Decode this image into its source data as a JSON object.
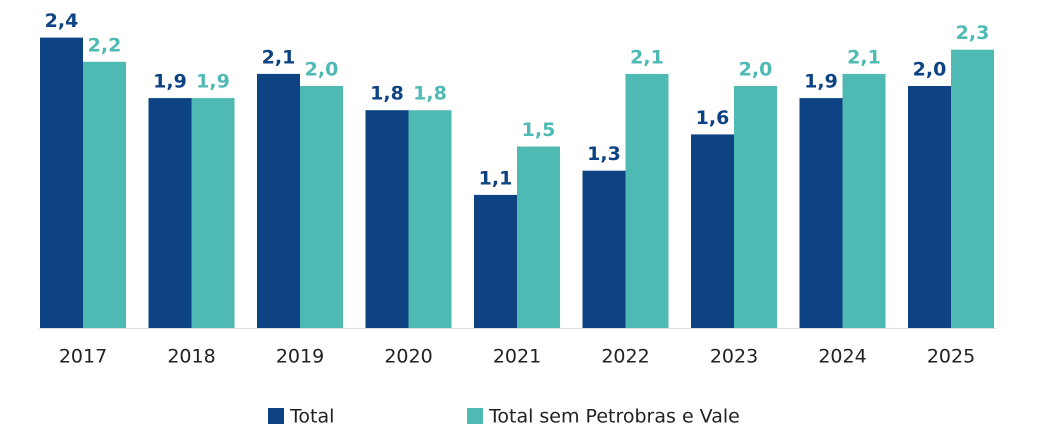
{
  "chart_data": {
    "type": "bar",
    "categories": [
      "2017",
      "2018",
      "2019",
      "2020",
      "2021",
      "2022",
      "2023",
      "2024",
      "2025"
    ],
    "series": [
      {
        "name": "Total",
        "color": "#0d4382",
        "values": [
          2.4,
          1.9,
          2.1,
          1.8,
          1.1,
          1.3,
          1.6,
          1.9,
          2.0
        ],
        "value_labels": [
          "2,4",
          "1,9",
          "2,1",
          "1,8",
          "1,1",
          "1,3",
          "1,6",
          "1,9",
          "2,0"
        ]
      },
      {
        "name": "Total sem Petrobras e Vale",
        "color": "#4fbab3",
        "values": [
          2.2,
          1.9,
          2.0,
          1.8,
          1.5,
          2.1,
          2.0,
          2.1,
          2.3
        ],
        "value_labels": [
          "2,2",
          "1,9",
          "2,0",
          "1,8",
          "1,5",
          "2,1",
          "2,0",
          "2,1",
          "2,3"
        ]
      }
    ]
  }
}
